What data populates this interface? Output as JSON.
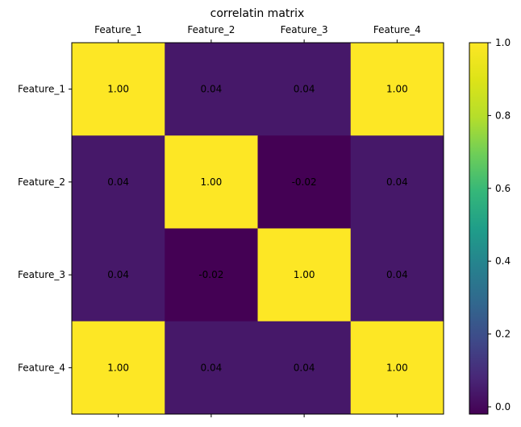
{
  "chart_data": {
    "type": "heatmap",
    "title": "correlatin matrix",
    "x_categories": [
      "Feature_1",
      "Feature_2",
      "Feature_3",
      "Feature_4"
    ],
    "y_categories": [
      "Feature_1",
      "Feature_2",
      "Feature_3",
      "Feature_4"
    ],
    "values": [
      [
        1.0,
        0.04,
        0.04,
        1.0
      ],
      [
        0.04,
        1.0,
        -0.02,
        0.04
      ],
      [
        0.04,
        -0.02,
        1.0,
        0.04
      ],
      [
        1.0,
        0.04,
        0.04,
        1.0
      ]
    ],
    "cell_labels": [
      [
        "1.00",
        "0.04",
        "0.04",
        "1.00"
      ],
      [
        "0.04",
        "1.00",
        "-0.02",
        "0.04"
      ],
      [
        "0.04",
        "-0.02",
        "1.00",
        "0.04"
      ],
      [
        "1.00",
        "0.04",
        "0.04",
        "1.00"
      ]
    ],
    "colormap": "viridis",
    "colorbar": {
      "min": -0.02,
      "max": 1.0,
      "ticks": [
        0.0,
        0.2,
        0.4,
        0.6,
        0.8,
        1.0
      ],
      "tick_labels": [
        "0.0",
        "0.2",
        "0.4",
        "0.6",
        "0.8",
        "1.0"
      ]
    },
    "x_tick_position": "top",
    "grid": false
  }
}
